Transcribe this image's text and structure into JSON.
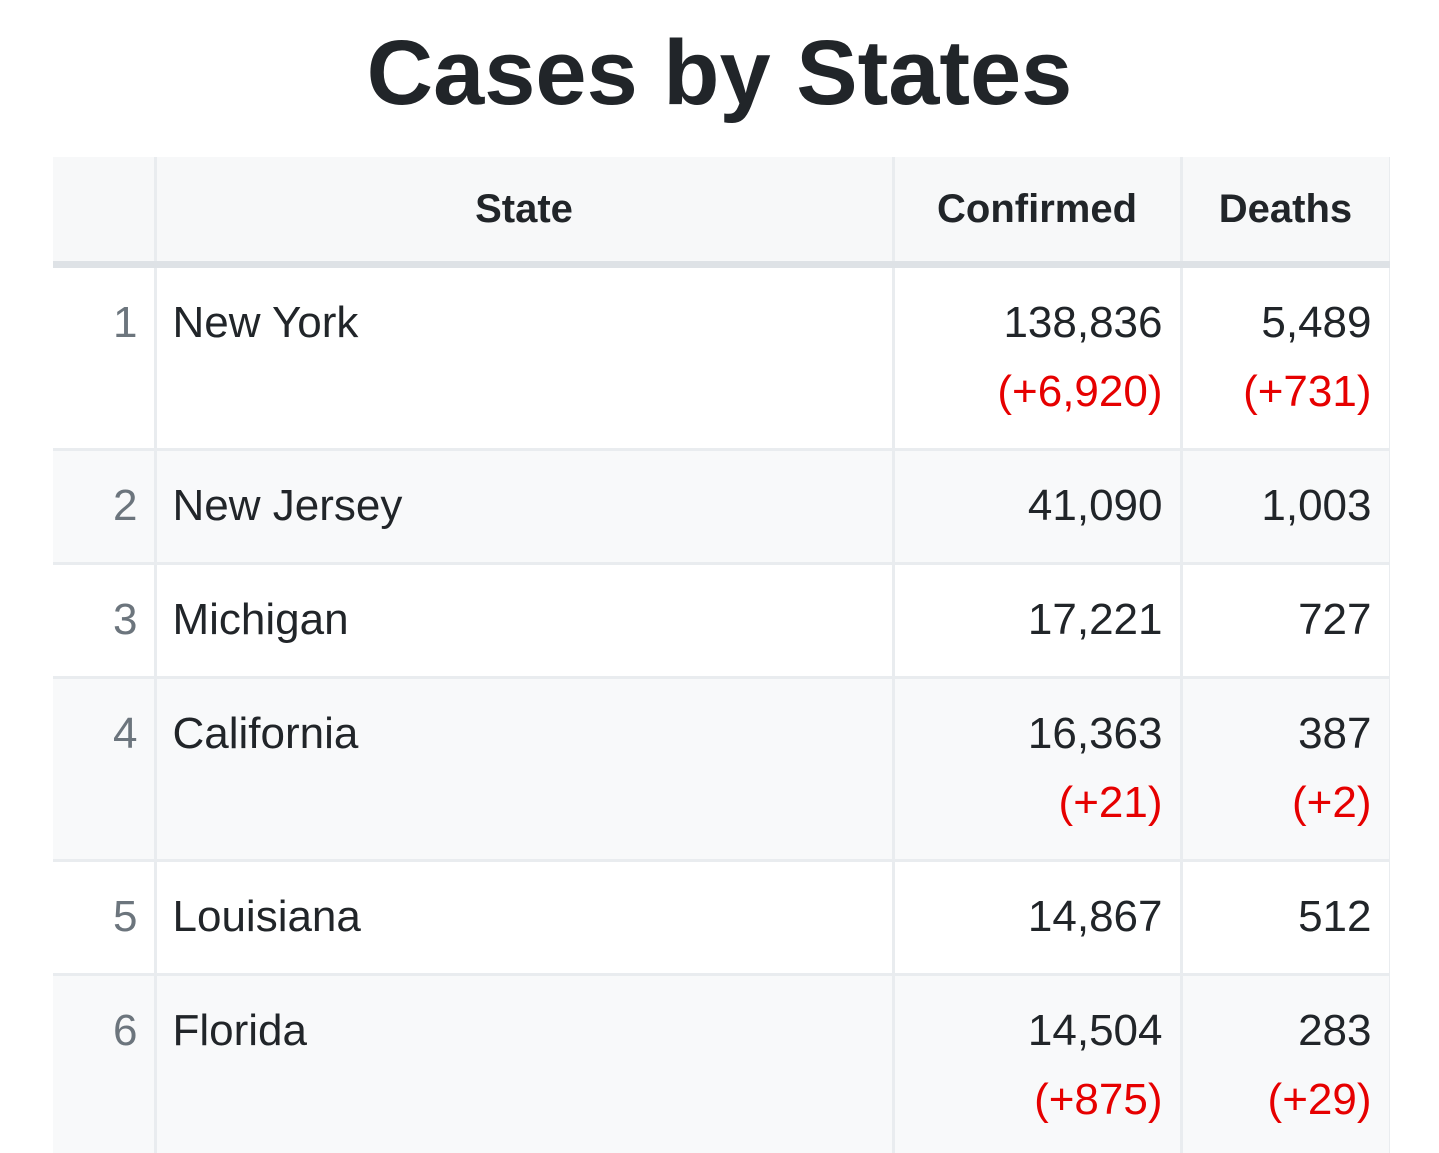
{
  "title": "Cases by States",
  "table": {
    "headers": {
      "rank": "",
      "state": "State",
      "confirmed": "Confirmed",
      "deaths": "Deaths"
    },
    "rows": [
      {
        "rank": "1",
        "state": "New York",
        "confirmed": "138,836",
        "confirmed_delta": "(+6,920)",
        "deaths": "5,489",
        "deaths_delta": "(+731)"
      },
      {
        "rank": "2",
        "state": "New Jersey",
        "confirmed": "41,090",
        "confirmed_delta": "",
        "deaths": "1,003",
        "deaths_delta": ""
      },
      {
        "rank": "3",
        "state": "Michigan",
        "confirmed": "17,221",
        "confirmed_delta": "",
        "deaths": "727",
        "deaths_delta": ""
      },
      {
        "rank": "4",
        "state": "California",
        "confirmed": "16,363",
        "confirmed_delta": "(+21)",
        "deaths": "387",
        "deaths_delta": "(+2)"
      },
      {
        "rank": "5",
        "state": "Louisiana",
        "confirmed": "14,867",
        "confirmed_delta": "",
        "deaths": "512",
        "deaths_delta": ""
      },
      {
        "rank": "6",
        "state": "Florida",
        "confirmed": "14,504",
        "confirmed_delta": "(+875)",
        "deaths": "283",
        "deaths_delta": "(+29)"
      }
    ]
  },
  "colors": {
    "text": "#212529",
    "rank_text": "#6c757d",
    "delta": "#e60000",
    "header_bg": "#f7f8f9",
    "stripe_bg": "#f8f9fa",
    "border": "#e9ecef"
  }
}
